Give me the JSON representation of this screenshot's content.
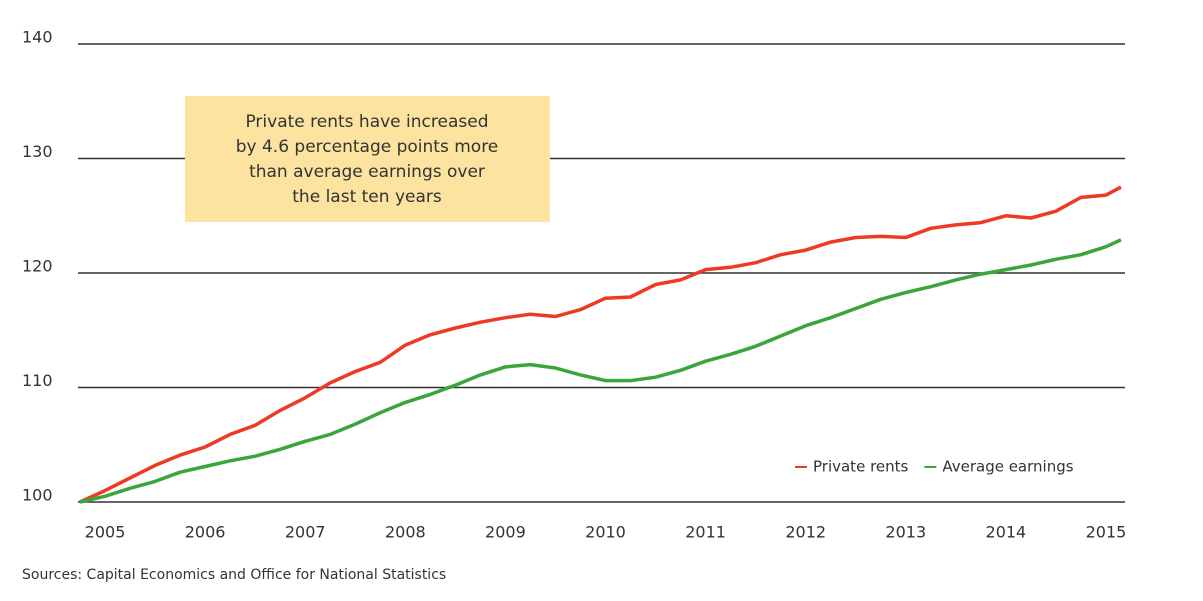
{
  "chart_data": {
    "type": "line",
    "annotation": [
      "Private rents have increased",
      "by 4.6 percentage points more",
      "than average earnings over",
      "the last ten years"
    ],
    "source": "Sources: Capital Economics and Office for National Statistics",
    "x": [
      2004.75,
      2005.0,
      2005.25,
      2005.5,
      2005.75,
      2006.0,
      2006.25,
      2006.5,
      2006.75,
      2007.0,
      2007.25,
      2007.5,
      2007.75,
      2008.0,
      2008.25,
      2008.5,
      2008.75,
      2009.0,
      2009.25,
      2009.5,
      2009.75,
      2010.0,
      2010.25,
      2010.5,
      2010.75,
      2011.0,
      2011.25,
      2011.5,
      2011.75,
      2012.0,
      2012.25,
      2012.5,
      2012.75,
      2013.0,
      2013.25,
      2013.5,
      2013.75,
      2014.0,
      2014.25,
      2014.5,
      2014.75,
      2015.0,
      2015.15
    ],
    "series": [
      {
        "name": "Private rents",
        "color": "#ee3a24",
        "values": [
          100,
          101.0,
          102.1,
          103.2,
          104.1,
          104.8,
          105.9,
          106.7,
          108.0,
          109.1,
          110.4,
          111.4,
          112.2,
          113.7,
          114.6,
          115.2,
          115.7,
          116.1,
          116.4,
          116.2,
          116.8,
          117.8,
          117.9,
          119.0,
          119.4,
          120.3,
          120.5,
          120.9,
          121.6,
          122.0,
          122.7,
          123.1,
          123.2,
          123.1,
          123.9,
          124.2,
          124.4,
          125.0,
          124.8,
          125.4,
          126.6,
          126.8,
          127.5
        ]
      },
      {
        "name": "Average earnings",
        "color": "#3aa63a",
        "values": [
          100,
          100.5,
          101.2,
          101.8,
          102.6,
          103.1,
          103.6,
          104.0,
          104.6,
          105.3,
          105.9,
          106.8,
          107.8,
          108.7,
          109.4,
          110.2,
          111.1,
          111.8,
          112.0,
          111.7,
          111.1,
          110.6,
          110.6,
          110.9,
          111.5,
          112.3,
          112.9,
          113.6,
          114.5,
          115.4,
          116.1,
          116.9,
          117.7,
          118.3,
          118.8,
          119.4,
          119.9,
          120.3,
          120.7,
          121.2,
          121.6,
          122.3,
          122.9
        ]
      }
    ],
    "xlim": [
      2004.73,
      2015.19
    ],
    "xticks": [
      2005,
      2006,
      2007,
      2008,
      2009,
      2010,
      2011,
      2012,
      2013,
      2014,
      2015
    ],
    "ylim": [
      100,
      140
    ],
    "yticks": [
      100,
      110,
      120,
      130,
      140
    ],
    "grid": true,
    "legend": "lower right"
  }
}
